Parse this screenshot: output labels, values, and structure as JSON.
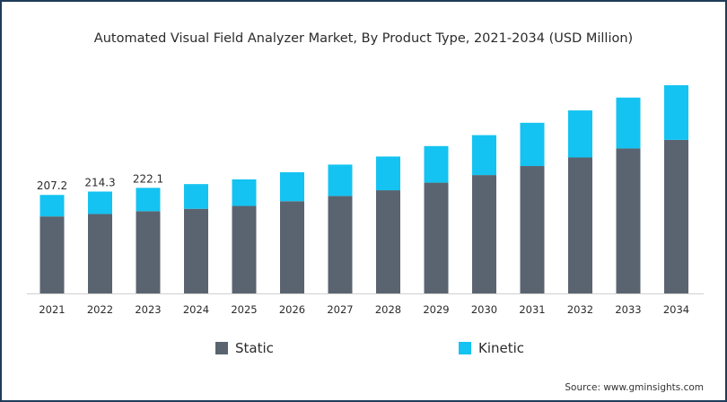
{
  "chart_data": {
    "type": "bar",
    "stacked": true,
    "title": "Automated Visual Field Analyzer Market, By Product Type, 2021-2034 (USD Million)",
    "categories": [
      "2021",
      "2022",
      "2023",
      "2024",
      "2025",
      "2026",
      "2027",
      "2028",
      "2029",
      "2030",
      "2031",
      "2032",
      "2033",
      "2034"
    ],
    "series": [
      {
        "name": "Static",
        "color": "#5a6470",
        "values": [
          162,
          167,
          173,
          178,
          184,
          194,
          205,
          217,
          233,
          249,
          268,
          286,
          305,
          323
        ]
      },
      {
        "name": "Kinetic",
        "color": "#14c3f1",
        "values": [
          45.2,
          47.3,
          49.1,
          52,
          56,
          61,
          66,
          71,
          77,
          84,
          91,
          99,
          107,
          115
        ]
      }
    ],
    "data_labels": [
      "207.2",
      "214.3",
      "222.1",
      "",
      "",
      "",
      "",
      "",
      "",
      "",
      "",
      "",
      "",
      ""
    ],
    "ylim": [
      0,
      538
    ],
    "grid": false,
    "legend_position": "bottom"
  },
  "source_text": "Source: www.gminsights.com"
}
